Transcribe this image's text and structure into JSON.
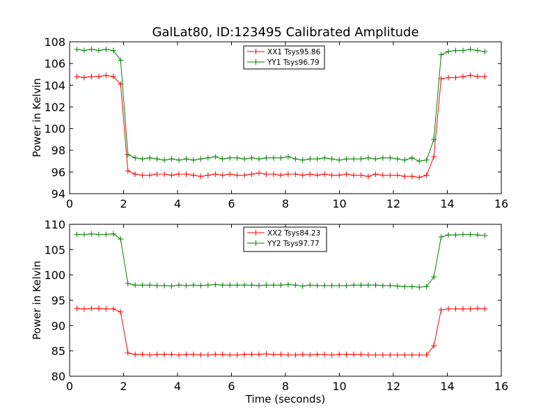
{
  "title": "GalLat80, ID:123495 Calibrated Amplitude",
  "chart_data": [
    {
      "type": "line",
      "title": "GalLat80, ID:123495 Calibrated Amplitude",
      "xlabel": "",
      "ylabel": "Power in Kelvin",
      "xlim": [
        0,
        16
      ],
      "ylim": [
        94,
        108
      ],
      "xticks": [
        "0",
        "2",
        "4",
        "6",
        "8",
        "10",
        "12",
        "14",
        "16"
      ],
      "yticks": [
        "94",
        "96",
        "98",
        "100",
        "102",
        "104",
        "106",
        "108"
      ],
      "grid": false,
      "legend": "top-center",
      "x": [
        0.27,
        0.54,
        0.81,
        1.08,
        1.35,
        1.62,
        1.89,
        2.16,
        2.43,
        2.7,
        2.97,
        3.24,
        3.51,
        3.78,
        4.05,
        4.32,
        4.59,
        4.86,
        5.13,
        5.4,
        5.67,
        5.94,
        6.21,
        6.48,
        6.75,
        7.02,
        7.29,
        7.56,
        7.83,
        8.1,
        8.37,
        8.64,
        8.91,
        9.18,
        9.45,
        9.72,
        9.99,
        10.26,
        10.53,
        10.8,
        11.07,
        11.34,
        11.61,
        11.88,
        12.15,
        12.42,
        12.69,
        12.96,
        13.23,
        13.5,
        13.77,
        14.04,
        14.31,
        14.58,
        14.85,
        15.12,
        15.39
      ],
      "series": [
        {
          "name": "XX1 Tsys95.86",
          "color": "#ff0000",
          "values": [
            104.8,
            104.7,
            104.8,
            104.8,
            104.9,
            104.8,
            104.1,
            96.1,
            95.8,
            95.7,
            95.7,
            95.8,
            95.8,
            95.7,
            95.8,
            95.8,
            95.7,
            95.6,
            95.7,
            95.8,
            95.7,
            95.8,
            95.7,
            95.7,
            95.8,
            95.9,
            95.8,
            95.8,
            95.7,
            95.8,
            95.8,
            95.7,
            95.8,
            95.7,
            95.8,
            95.7,
            95.7,
            95.8,
            95.7,
            95.7,
            95.6,
            95.8,
            95.7,
            95.7,
            95.7,
            95.6,
            95.6,
            95.5,
            95.7,
            97.4,
            104.6,
            104.7,
            104.7,
            104.8,
            104.9,
            104.8,
            104.8
          ]
        },
        {
          "name": "YY1 Tsys96.79",
          "color": "#008000",
          "values": [
            107.3,
            107.2,
            107.3,
            107.2,
            107.3,
            107.2,
            106.3,
            97.6,
            97.3,
            97.2,
            97.3,
            97.2,
            97.1,
            97.2,
            97.1,
            97.2,
            97.1,
            97.2,
            97.3,
            97.4,
            97.2,
            97.3,
            97.3,
            97.2,
            97.3,
            97.2,
            97.3,
            97.3,
            97.3,
            97.4,
            97.2,
            97.1,
            97.2,
            97.2,
            97.3,
            97.2,
            97.1,
            97.2,
            97.2,
            97.2,
            97.3,
            97.2,
            97.3,
            97.3,
            97.2,
            97.1,
            97.3,
            97.0,
            97.1,
            99.0,
            106.8,
            107.1,
            107.2,
            107.2,
            107.3,
            107.2,
            107.1
          ]
        }
      ]
    },
    {
      "type": "line",
      "title": "",
      "xlabel": "Time (seconds)",
      "ylabel": "Power in Kelvin",
      "xlim": [
        0,
        16
      ],
      "ylim": [
        80,
        110
      ],
      "xticks": [
        "0",
        "2",
        "4",
        "6",
        "8",
        "10",
        "12",
        "14",
        "16"
      ],
      "yticks": [
        "80",
        "85",
        "90",
        "95",
        "100",
        "105",
        "110"
      ],
      "grid": false,
      "legend": "top-center",
      "x": [
        0.27,
        0.54,
        0.81,
        1.08,
        1.35,
        1.62,
        1.89,
        2.16,
        2.43,
        2.7,
        2.97,
        3.24,
        3.51,
        3.78,
        4.05,
        4.32,
        4.59,
        4.86,
        5.13,
        5.4,
        5.67,
        5.94,
        6.21,
        6.48,
        6.75,
        7.02,
        7.29,
        7.56,
        7.83,
        8.1,
        8.37,
        8.64,
        8.91,
        9.18,
        9.45,
        9.72,
        9.99,
        10.26,
        10.53,
        10.8,
        11.07,
        11.34,
        11.61,
        11.88,
        12.15,
        12.42,
        12.69,
        12.96,
        13.23,
        13.5,
        13.77,
        14.04,
        14.31,
        14.58,
        14.85,
        15.12,
        15.39
      ],
      "series": [
        {
          "name": "XX2 Tsys84.23",
          "color": "#ff0000",
          "values": [
            93.4,
            93.3,
            93.4,
            93.4,
            93.3,
            93.3,
            92.7,
            84.6,
            84.3,
            84.3,
            84.2,
            84.3,
            84.3,
            84.3,
            84.2,
            84.3,
            84.3,
            84.2,
            84.2,
            84.3,
            84.3,
            84.2,
            84.2,
            84.3,
            84.3,
            84.3,
            84.4,
            84.3,
            84.3,
            84.2,
            84.2,
            84.3,
            84.2,
            84.3,
            84.3,
            84.2,
            84.3,
            84.3,
            84.3,
            84.3,
            84.2,
            84.2,
            84.2,
            84.2,
            84.2,
            84.2,
            84.2,
            84.2,
            84.2,
            86.0,
            93.1,
            93.3,
            93.3,
            93.3,
            93.3,
            93.4,
            93.3
          ]
        },
        {
          "name": "YY2 Tsys97.77",
          "color": "#008000",
          "values": [
            108.0,
            108.0,
            108.1,
            108.0,
            108.0,
            108.1,
            107.1,
            98.3,
            98.0,
            98.0,
            98.0,
            97.9,
            97.9,
            97.8,
            98.0,
            97.9,
            98.0,
            97.9,
            98.0,
            98.1,
            98.0,
            98.0,
            98.0,
            98.0,
            98.0,
            97.9,
            98.0,
            98.0,
            98.0,
            98.1,
            98.0,
            97.8,
            98.0,
            97.9,
            97.9,
            97.9,
            97.9,
            97.9,
            98.0,
            98.0,
            98.0,
            98.0,
            97.9,
            97.9,
            97.8,
            97.7,
            97.7,
            97.6,
            97.7,
            99.6,
            107.5,
            107.9,
            107.9,
            108.0,
            108.0,
            107.9,
            107.8
          ]
        }
      ]
    }
  ]
}
